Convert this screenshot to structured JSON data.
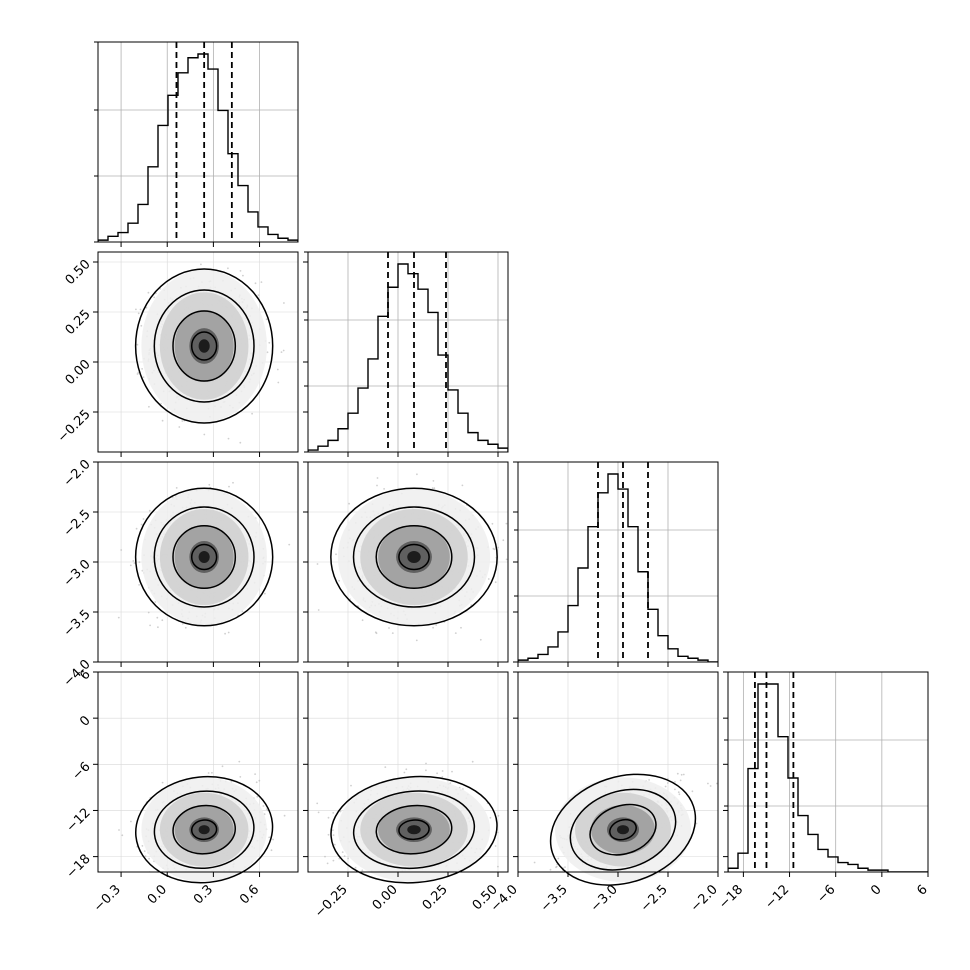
{
  "chart_data": {
    "type": "corner",
    "n_params": 4,
    "grid": true,
    "params": [
      {
        "range": [
          -0.45,
          0.85
        ],
        "ticks": [
          -0.3,
          0.0,
          0.3,
          0.6
        ],
        "tick_labels": [
          "−0.3",
          "0.0",
          "0.3",
          "0.6"
        ],
        "quantiles": [
          0.06,
          0.24,
          0.42
        ],
        "hist": [
          0.01,
          0.03,
          0.05,
          0.1,
          0.2,
          0.4,
          0.62,
          0.78,
          0.9,
          0.98,
          1.0,
          0.92,
          0.7,
          0.47,
          0.3,
          0.16,
          0.08,
          0.04,
          0.02,
          0.01
        ],
        "mean": 0.24,
        "sd": 0.15
      },
      {
        "range": [
          -0.45,
          0.55
        ],
        "ticks": [
          -0.25,
          0.0,
          0.25,
          0.5
        ],
        "tick_labels": [
          "−0.25",
          "0.00",
          "0.25",
          "0.50"
        ],
        "quantiles": [
          -0.05,
          0.08,
          0.24
        ],
        "hist": [
          0.01,
          0.03,
          0.06,
          0.12,
          0.2,
          0.33,
          0.48,
          0.7,
          0.85,
          0.97,
          0.92,
          0.84,
          0.72,
          0.5,
          0.32,
          0.2,
          0.1,
          0.06,
          0.04,
          0.02
        ],
        "mean": 0.08,
        "sd": 0.14
      },
      {
        "range": [
          -4.0,
          -2.0
        ],
        "ticks": [
          -4.0,
          -3.5,
          -3.0,
          -2.5,
          -2.0
        ],
        "tick_labels": [
          "−4.0",
          "−3.5",
          "−3.0",
          "−2.5",
          "−2.0"
        ],
        "quantiles": [
          -3.2,
          -2.95,
          -2.7
        ],
        "hist": [
          0.01,
          0.02,
          0.04,
          0.08,
          0.16,
          0.3,
          0.5,
          0.72,
          0.9,
          1.0,
          0.92,
          0.72,
          0.48,
          0.28,
          0.14,
          0.07,
          0.03,
          0.02,
          0.01,
          0.0
        ],
        "mean": -2.95,
        "sd": 0.25
      },
      {
        "range": [
          -20.0,
          6.0
        ],
        "ticks": [
          -18,
          -12,
          -6,
          0,
          6
        ],
        "tick_labels": [
          "−18",
          "−12",
          "−6",
          "0",
          "6"
        ],
        "quantiles": [
          -16.5,
          -15.0,
          -11.5
        ],
        "hist": [
          0.02,
          0.1,
          0.55,
          1.0,
          1.0,
          0.72,
          0.5,
          0.3,
          0.2,
          0.12,
          0.08,
          0.05,
          0.04,
          0.02,
          0.01,
          0.01,
          0.0,
          0.0,
          0.0,
          0.0
        ],
        "mean": -14.5,
        "sd": 2.5
      }
    ],
    "row_tick_labels": {
      "1": [
        "−0.25",
        "0.00",
        "0.25",
        "0.50"
      ],
      "2": [
        "−4.0",
        "−3.5",
        "−3.0",
        "−2.5",
        "−2.0"
      ],
      "3": [
        "−18",
        "−12",
        "−6",
        "0",
        "6"
      ]
    }
  }
}
